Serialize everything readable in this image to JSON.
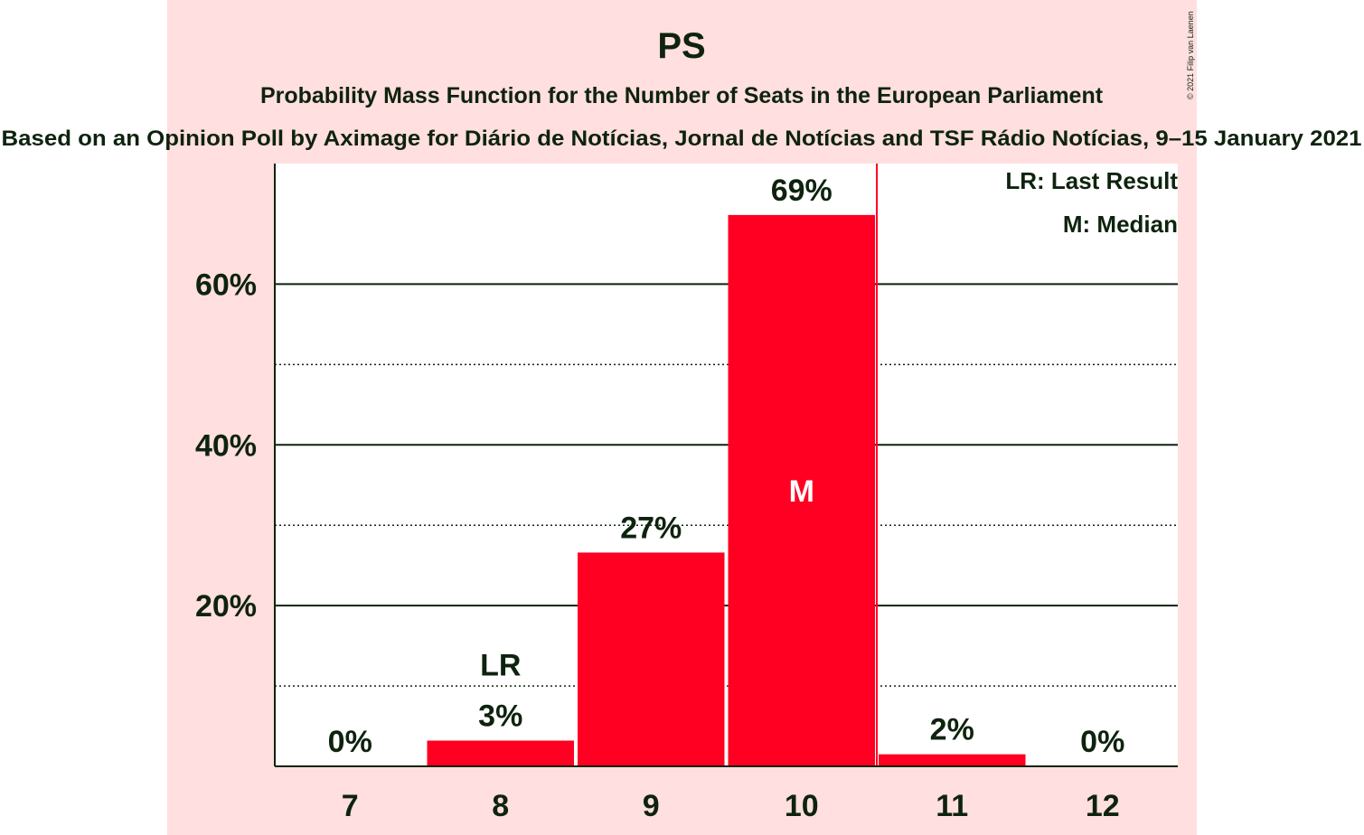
{
  "chart_data": {
    "type": "bar",
    "title": "PS",
    "subtitle": "Probability Mass Function for the Number of Seats in the European Parliament",
    "subtitle2": "Based on an Opinion Poll by Aximage for Diário de Notícias, Jornal de Notícias and TSF Rádio Notícias, 9–15 January 2021",
    "copyright": "© 2021 Filip van Laenen",
    "categories": [
      "7",
      "8",
      "9",
      "10",
      "11",
      "12"
    ],
    "values": [
      0,
      3.2,
      26.6,
      68.6,
      1.5,
      0
    ],
    "value_labels": [
      "0%",
      "3%",
      "27%",
      "69%",
      "2%",
      "0%"
    ],
    "bar_markers": [
      "",
      "LR",
      "",
      "M",
      "",
      ""
    ],
    "last_result_seats": "8",
    "median_seats": "10",
    "y_ticks": [
      20,
      40,
      60
    ],
    "y_tick_labels": [
      "20%",
      "40%",
      "60%"
    ],
    "y_minor_ticks": [
      10,
      30,
      50
    ],
    "ylim": [
      0,
      75
    ],
    "legend": [
      "LR: Last Result",
      "M: Median"
    ],
    "legend_position": "top-right",
    "grid": true,
    "colors": {
      "bar": "#ff0022",
      "plot_background": "#ffffff",
      "band_background": "#ffdfdf",
      "text": "#0e230e",
      "median_line": "#ff0022"
    }
  }
}
